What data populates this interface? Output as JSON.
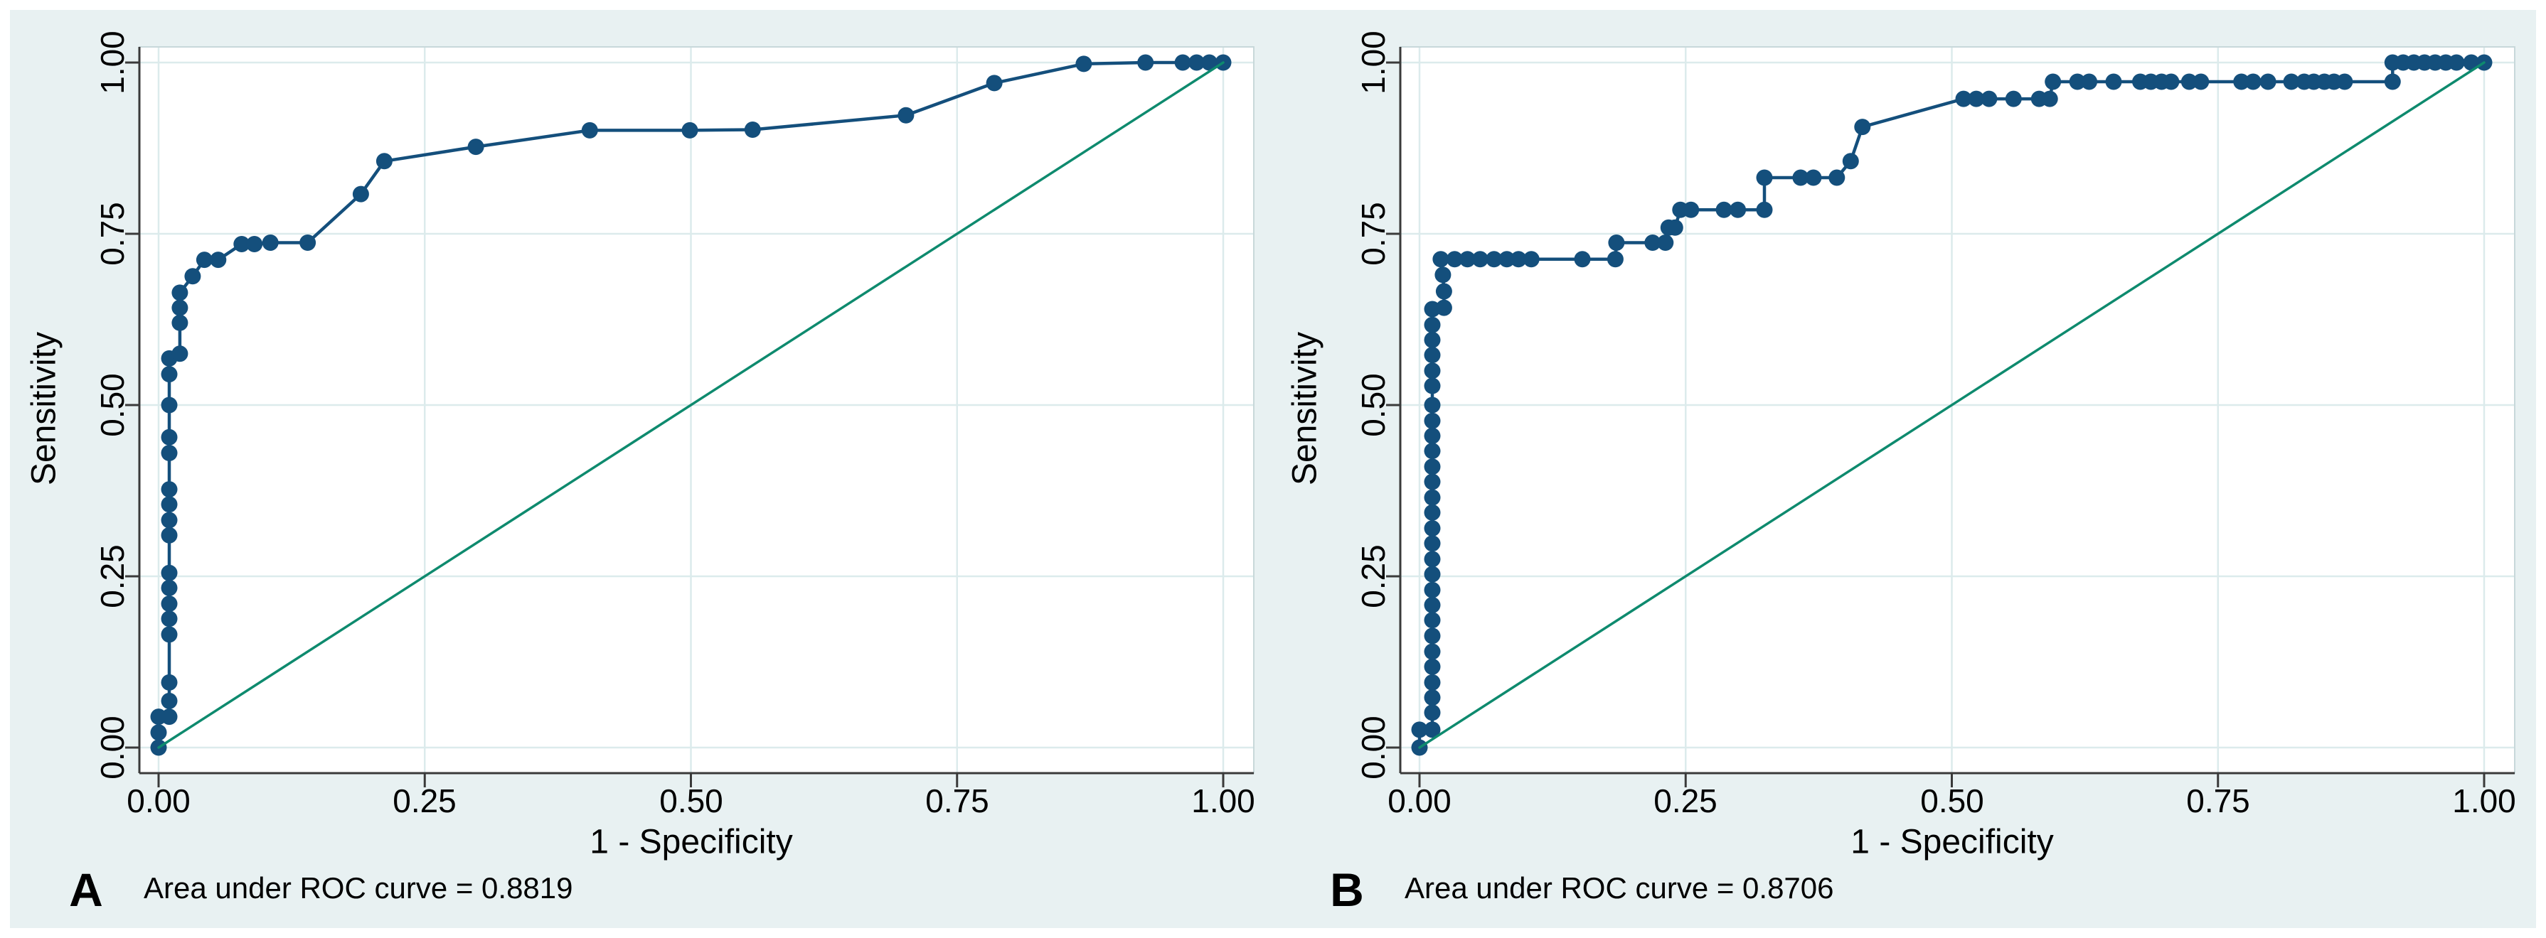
{
  "colors": {
    "curve": "#144f7c",
    "reference_line": "#0e8a6e",
    "grid": "#dcebec",
    "axis": "#3a3a3a",
    "plot_background": "#ffffff",
    "graph_background": "#e8f1f2",
    "plot_border": "#c8d8da",
    "text": "#000000"
  },
  "chart_data": [
    {
      "type": "line",
      "panel_label": "A",
      "auc_text": "Area under ROC curve = 0.8819",
      "auc_value": 0.8819,
      "xlabel": "1 - Specificity",
      "ylabel": "Sensitivity",
      "xlim": [
        0,
        1
      ],
      "ylim": [
        0,
        1
      ],
      "grid": true,
      "xtick_values": [
        0,
        0.25,
        0.5,
        0.75,
        1
      ],
      "ytick_values": [
        0,
        0.25,
        0.5,
        0.75,
        1
      ],
      "xtick_labels": [
        "0.00",
        "0.25",
        "0.50",
        "0.75",
        "1.00"
      ],
      "ytick_labels": [
        "1.00",
        "0.75",
        "0.50",
        "0.25",
        "0.00"
      ],
      "series": [
        {
          "name": "roc-curve",
          "marker": "circle",
          "points": [
            [
              0.0,
              0.0
            ],
            [
              0.0,
              0.022
            ],
            [
              0.0,
              0.045
            ],
            [
              0.01,
              0.045
            ],
            [
              0.01,
              0.068
            ],
            [
              0.01,
              0.095
            ],
            [
              0.01,
              0.165
            ],
            [
              0.01,
              0.188
            ],
            [
              0.01,
              0.21
            ],
            [
              0.01,
              0.233
            ],
            [
              0.01,
              0.255
            ],
            [
              0.01,
              0.31
            ],
            [
              0.01,
              0.332
            ],
            [
              0.01,
              0.355
            ],
            [
              0.01,
              0.377
            ],
            [
              0.01,
              0.43
            ],
            [
              0.01,
              0.453
            ],
            [
              0.01,
              0.5
            ],
            [
              0.01,
              0.545
            ],
            [
              0.01,
              0.568
            ],
            [
              0.02,
              0.575
            ],
            [
              0.02,
              0.62
            ],
            [
              0.02,
              0.642
            ],
            [
              0.02,
              0.664
            ],
            [
              0.032,
              0.688
            ],
            [
              0.043,
              0.712
            ],
            [
              0.056,
              0.712
            ],
            [
              0.078,
              0.735
            ],
            [
              0.09,
              0.735
            ],
            [
              0.105,
              0.737
            ],
            [
              0.14,
              0.737
            ],
            [
              0.19,
              0.808
            ],
            [
              0.212,
              0.856
            ],
            [
              0.298,
              0.877
            ],
            [
              0.405,
              0.901
            ],
            [
              0.499,
              0.901
            ],
            [
              0.558,
              0.902
            ],
            [
              0.702,
              0.923
            ],
            [
              0.785,
              0.97
            ],
            [
              0.869,
              0.998
            ],
            [
              0.927,
              1.0
            ],
            [
              0.962,
              1.0
            ],
            [
              0.975,
              1.0
            ],
            [
              0.987,
              1.0
            ],
            [
              1.0,
              1.0
            ]
          ]
        },
        {
          "name": "reference-diagonal",
          "marker": "none",
          "points": [
            [
              0,
              0
            ],
            [
              1,
              1
            ]
          ]
        }
      ]
    },
    {
      "type": "line",
      "panel_label": "B",
      "auc_text": "Area under ROC curve = 0.8706",
      "auc_value": 0.8706,
      "xlabel": "1 - Specificity",
      "ylabel": "Sensitivity",
      "xlim": [
        0,
        1
      ],
      "ylim": [
        0,
        1
      ],
      "grid": true,
      "xtick_values": [
        0,
        0.25,
        0.5,
        0.75,
        1
      ],
      "ytick_values": [
        0,
        0.25,
        0.5,
        0.75,
        1
      ],
      "xtick_labels": [
        "0.00",
        "0.25",
        "0.50",
        "0.75",
        "1.00"
      ],
      "ytick_labels": [
        "1.00",
        "0.75",
        "0.50",
        "0.25",
        "0.00"
      ],
      "series": [
        {
          "name": "roc-curve",
          "marker": "circle",
          "points": [
            [
              0.0,
              0.0
            ],
            [
              0.0,
              0.026
            ],
            [
              0.012,
              0.026
            ],
            [
              0.012,
              0.051
            ],
            [
              0.012,
              0.073
            ],
            [
              0.012,
              0.095
            ],
            [
              0.012,
              0.118
            ],
            [
              0.012,
              0.14
            ],
            [
              0.012,
              0.163
            ],
            [
              0.012,
              0.186
            ],
            [
              0.012,
              0.208
            ],
            [
              0.012,
              0.23
            ],
            [
              0.012,
              0.253
            ],
            [
              0.012,
              0.275
            ],
            [
              0.012,
              0.298
            ],
            [
              0.012,
              0.32
            ],
            [
              0.012,
              0.343
            ],
            [
              0.012,
              0.365
            ],
            [
              0.012,
              0.388
            ],
            [
              0.012,
              0.41
            ],
            [
              0.012,
              0.433
            ],
            [
              0.012,
              0.455
            ],
            [
              0.012,
              0.477
            ],
            [
              0.012,
              0.5
            ],
            [
              0.012,
              0.528
            ],
            [
              0.012,
              0.55
            ],
            [
              0.012,
              0.573
            ],
            [
              0.012,
              0.595
            ],
            [
              0.012,
              0.617
            ],
            [
              0.012,
              0.64
            ],
            [
              0.023,
              0.642
            ],
            [
              0.023,
              0.666
            ],
            [
              0.022,
              0.69
            ],
            [
              0.02,
              0.713
            ],
            [
              0.033,
              0.713
            ],
            [
              0.045,
              0.713
            ],
            [
              0.057,
              0.713
            ],
            [
              0.07,
              0.713
            ],
            [
              0.082,
              0.713
            ],
            [
              0.093,
              0.713
            ],
            [
              0.105,
              0.713
            ],
            [
              0.153,
              0.713
            ],
            [
              0.184,
              0.713
            ],
            [
              0.185,
              0.737
            ],
            [
              0.219,
              0.737
            ],
            [
              0.231,
              0.737
            ],
            [
              0.234,
              0.759
            ],
            [
              0.24,
              0.759
            ],
            [
              0.245,
              0.785
            ],
            [
              0.255,
              0.785
            ],
            [
              0.286,
              0.785
            ],
            [
              0.299,
              0.785
            ],
            [
              0.324,
              0.785
            ],
            [
              0.324,
              0.832
            ],
            [
              0.358,
              0.832
            ],
            [
              0.37,
              0.832
            ],
            [
              0.392,
              0.832
            ],
            [
              0.405,
              0.856
            ],
            [
              0.416,
              0.906
            ],
            [
              0.511,
              0.947
            ],
            [
              0.523,
              0.947
            ],
            [
              0.535,
              0.947
            ],
            [
              0.558,
              0.947
            ],
            [
              0.582,
              0.947
            ],
            [
              0.592,
              0.947
            ],
            [
              0.595,
              0.972
            ],
            [
              0.618,
              0.972
            ],
            [
              0.629,
              0.972
            ],
            [
              0.652,
              0.972
            ],
            [
              0.677,
              0.972
            ],
            [
              0.687,
              0.972
            ],
            [
              0.697,
              0.972
            ],
            [
              0.706,
              0.972
            ],
            [
              0.723,
              0.972
            ],
            [
              0.734,
              0.972
            ],
            [
              0.772,
              0.972
            ],
            [
              0.783,
              0.972
            ],
            [
              0.797,
              0.972
            ],
            [
              0.819,
              0.972
            ],
            [
              0.831,
              0.972
            ],
            [
              0.84,
              0.972
            ],
            [
              0.85,
              0.972
            ],
            [
              0.859,
              0.972
            ],
            [
              0.869,
              0.972
            ],
            [
              0.914,
              0.972
            ],
            [
              0.914,
              1.0
            ],
            [
              0.924,
              1.0
            ],
            [
              0.934,
              1.0
            ],
            [
              0.944,
              1.0
            ],
            [
              0.954,
              1.0
            ],
            [
              0.964,
              1.0
            ],
            [
              0.974,
              1.0
            ],
            [
              0.988,
              1.0
            ],
            [
              1.0,
              1.0
            ]
          ]
        },
        {
          "name": "reference-diagonal",
          "marker": "none",
          "points": [
            [
              0,
              0
            ],
            [
              1,
              1
            ]
          ]
        }
      ]
    }
  ]
}
